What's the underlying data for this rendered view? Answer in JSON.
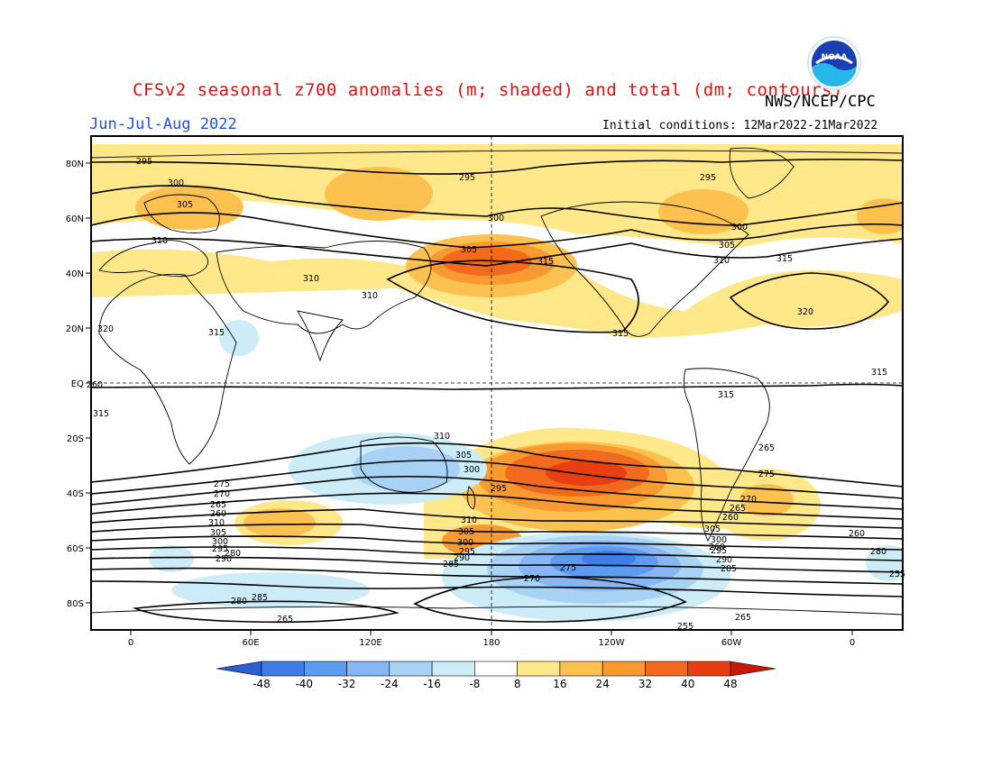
{
  "header": {
    "title": "CFSv2 seasonal z700 anomalies (m; shaded) and total (dm; contours)",
    "agency": "NWS/NCEP/CPC",
    "season": "Jun-Jul-Aug 2022",
    "initial_conditions": "Initial conditions: 12Mar2022-21Mar2022",
    "logo_text": "NOAA"
  },
  "axes": {
    "lat_labels": [
      "80N",
      "60N",
      "40N",
      "20N",
      "EQ",
      "20S",
      "40S",
      "60S",
      "80S"
    ],
    "lon_labels": [
      "0",
      "60E",
      "120E",
      "180",
      "120W",
      "60W",
      "0"
    ]
  },
  "colorbar": {
    "labels": [
      "-48",
      "-40",
      "-32",
      "-24",
      "-16",
      "-8",
      "8",
      "16",
      "24",
      "32",
      "40",
      "48"
    ],
    "colors": [
      "#2c5fd4",
      "#3f7ee8",
      "#5d9af0",
      "#86b7f4",
      "#a9d3f5",
      "#ccecf7",
      "#ffffff",
      "#ffe88a",
      "#fcc14e",
      "#f89a30",
      "#f26a1e",
      "#e83f12",
      "#c41a0a"
    ]
  },
  "contour_labels": [
    "295",
    "300",
    "305",
    "310",
    "295",
    "300",
    "305",
    "315",
    "295",
    "300",
    "305",
    "310",
    "315",
    "320",
    "310",
    "310",
    "315",
    "320",
    "315",
    "315",
    "315",
    "315",
    "310",
    "305",
    "300",
    "295",
    "310",
    "305",
    "300",
    "295",
    "290",
    "285",
    "280",
    "275",
    "270",
    "265",
    "260",
    "305",
    "300",
    "295",
    "290",
    "285",
    "280",
    "275",
    "270",
    "265",
    "260",
    "310",
    "305",
    "300",
    "295",
    "290",
    "285",
    "280",
    "275",
    "270",
    "265",
    "265",
    "260",
    "255",
    "265",
    "260",
    "255",
    "260"
  ]
}
